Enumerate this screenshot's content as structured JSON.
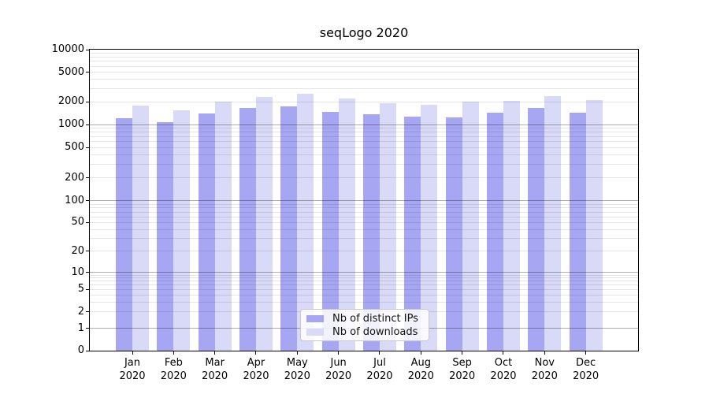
{
  "chart_data": {
    "type": "bar",
    "title": "seqLogo 2020",
    "y_scale": "symlog",
    "ylim": [
      0,
      10000
    ],
    "y_ticks": [
      10000,
      5000,
      2000,
      1000,
      500,
      200,
      100,
      50,
      20,
      10,
      5,
      2,
      1,
      0
    ],
    "grid": "on",
    "legend_position": "lower center",
    "x_year": "2020",
    "categories": [
      "Jan",
      "Feb",
      "Mar",
      "Apr",
      "May",
      "Jun",
      "Jul",
      "Aug",
      "Sep",
      "Oct",
      "Nov",
      "Dec"
    ],
    "series": [
      {
        "name": "Nb of distinct IPs",
        "color": "#a6a6f2",
        "values": [
          1210,
          1080,
          1420,
          1650,
          1750,
          1460,
          1370,
          1280,
          1230,
          1450,
          1680,
          1450
        ]
      },
      {
        "name": "Nb of downloads",
        "color": "#d9d9f8",
        "values": [
          1790,
          1550,
          2020,
          2320,
          2570,
          2230,
          1940,
          1820,
          2010,
          2050,
          2400,
          2140
        ]
      }
    ]
  }
}
